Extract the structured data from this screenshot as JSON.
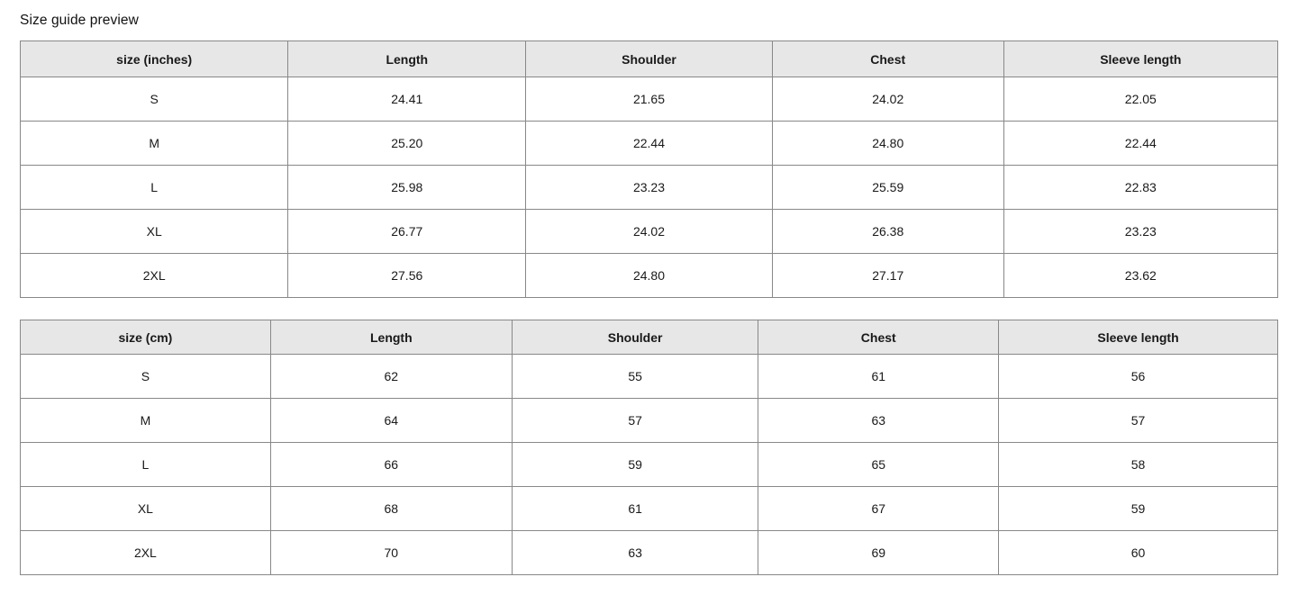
{
  "page": {
    "title": "Size guide preview"
  },
  "colors": {
    "header_bg": "#e7e7e7",
    "border": "#888888",
    "text": "#191919"
  },
  "tables": [
    {
      "unit": "inches",
      "headers": [
        "size (inches)",
        "Length",
        "Shoulder",
        "Chest",
        "Sleeve length"
      ],
      "rows": [
        [
          "S",
          "24.41",
          "21.65",
          "24.02",
          "22.05"
        ],
        [
          "M",
          "25.20",
          "22.44",
          "24.80",
          "22.44"
        ],
        [
          "L",
          "25.98",
          "23.23",
          "25.59",
          "22.83"
        ],
        [
          "XL",
          "26.77",
          "24.02",
          "26.38",
          "23.23"
        ],
        [
          "2XL",
          "27.56",
          "24.80",
          "27.17",
          "23.62"
        ]
      ]
    },
    {
      "unit": "cm",
      "headers": [
        "size (cm)",
        "Length",
        "Shoulder",
        "Chest",
        "Sleeve length"
      ],
      "rows": [
        [
          "S",
          "62",
          "55",
          "61",
          "56"
        ],
        [
          "M",
          "64",
          "57",
          "63",
          "57"
        ],
        [
          "L",
          "66",
          "59",
          "65",
          "58"
        ],
        [
          "XL",
          "68",
          "61",
          "67",
          "59"
        ],
        [
          "2XL",
          "70",
          "63",
          "69",
          "60"
        ]
      ]
    }
  ]
}
